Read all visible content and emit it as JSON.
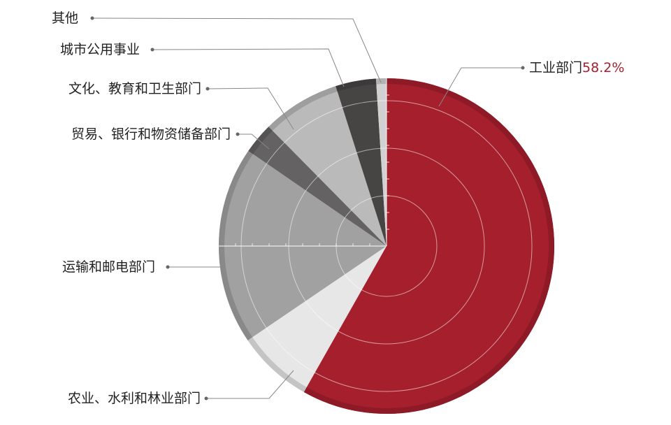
{
  "chart_data": {
    "type": "pie",
    "categories": [
      "工业部门",
      "农业、水利和林业部门",
      "运输和邮电部门",
      "贸易、银行和物资储备部门",
      "文化、教育和卫生部门",
      "城市公用事业",
      "其他"
    ],
    "values": [
      58.2,
      7.3,
      19.1,
      3.0,
      7.5,
      3.9,
      1.0
    ],
    "value_labels": [
      "58.2%",
      null,
      null,
      null,
      null,
      null,
      null
    ],
    "colors": [
      "#a61f2d",
      "#e6e7e6",
      "#a0a1a0",
      "#646263",
      "#b9bab9",
      "#474444",
      "#d0d1d0"
    ]
  }
}
